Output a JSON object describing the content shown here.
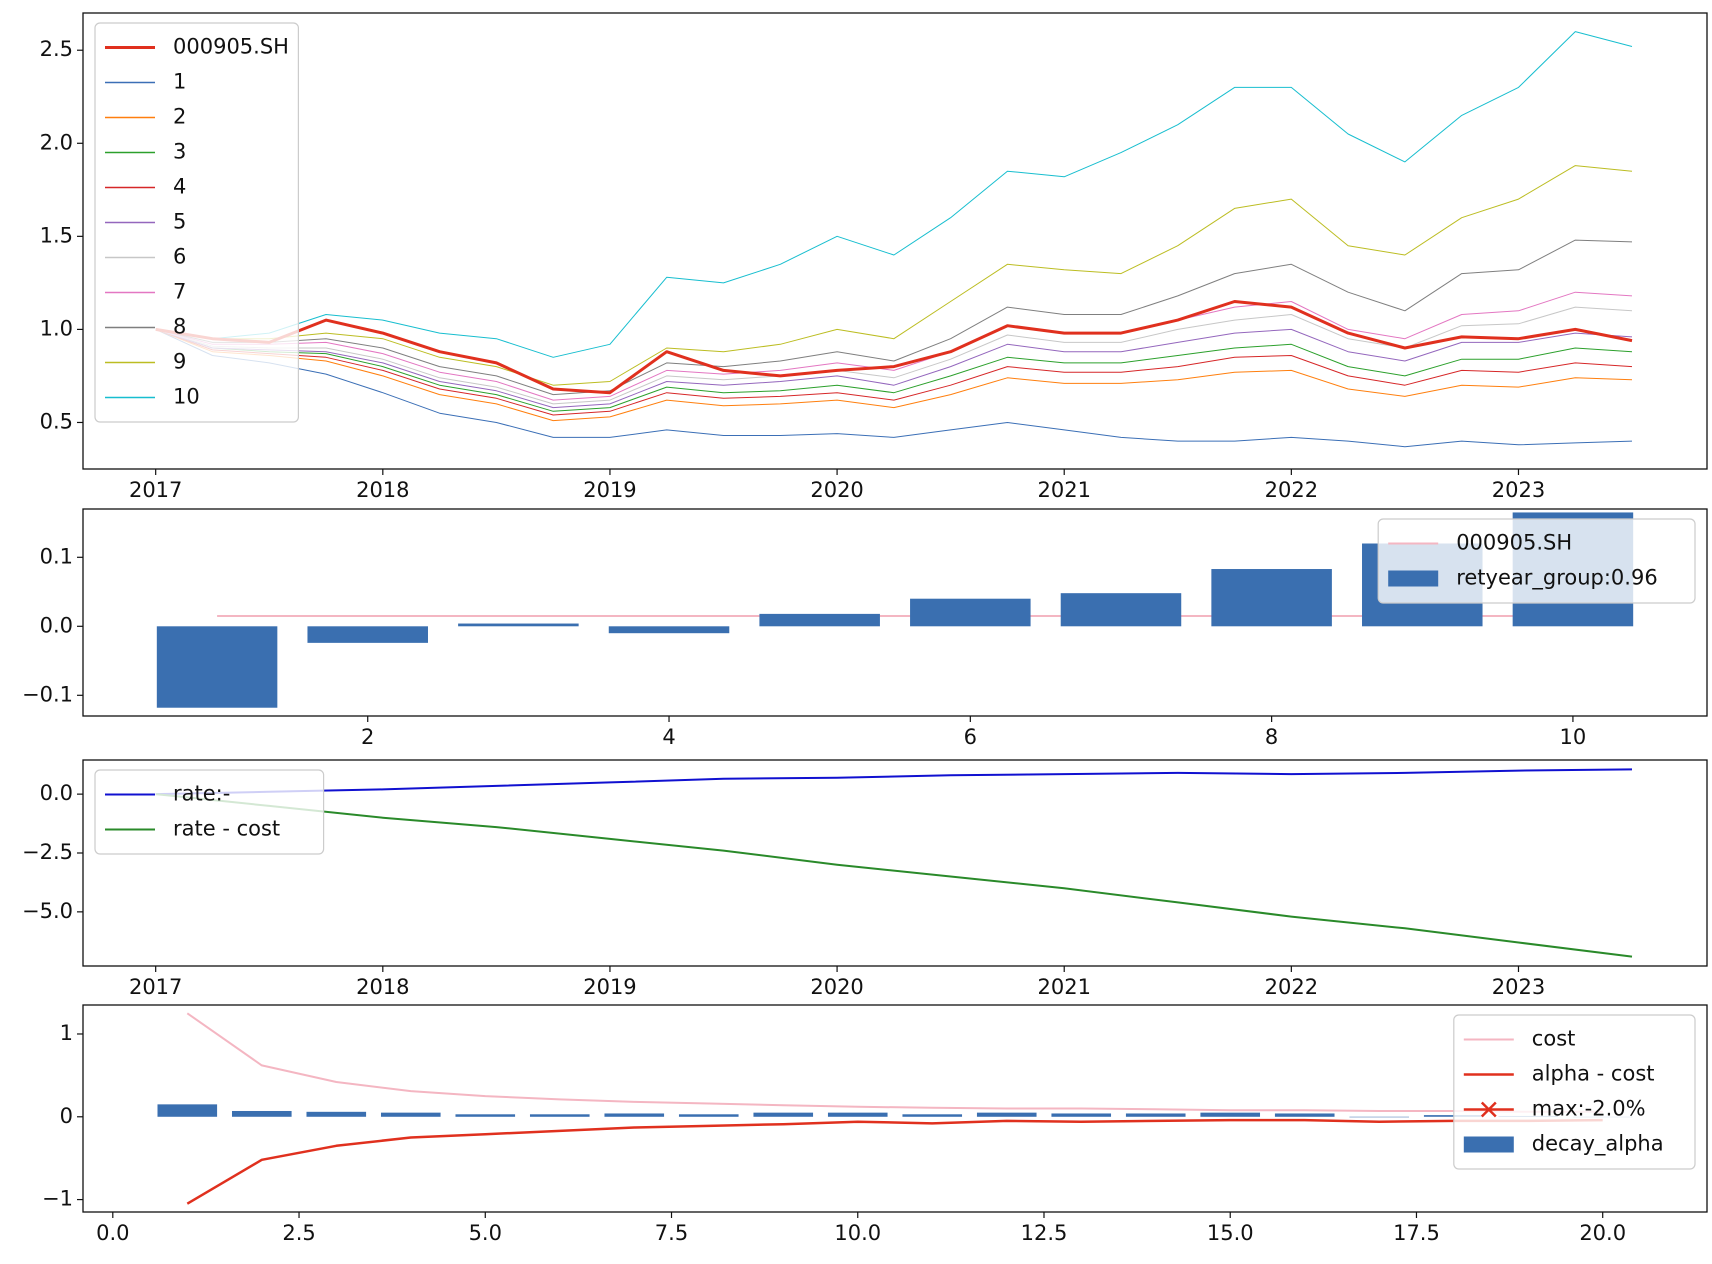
{
  "chart_data": [
    {
      "type": "line",
      "legend": "upper left",
      "x": [
        2017,
        2017.25,
        2017.5,
        2017.75,
        2018,
        2018.25,
        2018.5,
        2018.75,
        2019,
        2019.25,
        2019.5,
        2019.75,
        2020,
        2020.25,
        2020.5,
        2020.75,
        2021,
        2021.25,
        2021.5,
        2021.75,
        2022,
        2022.25,
        2022.5,
        2022.75,
        2023,
        2023.25,
        2023.5
      ],
      "xlim": [
        2016.68,
        2023.83
      ],
      "xticks": [
        2017,
        2018,
        2019,
        2020,
        2021,
        2022,
        2023
      ],
      "ylim": [
        0.25,
        2.7
      ],
      "yticks": [
        0.5,
        {
          "value": 1,
          "label": "1.0"
        },
        1.5,
        {
          "value": 2,
          "label": "2.0"
        },
        2.5
      ],
      "series": [
        {
          "name": "000905.SH",
          "color": "#e0301e",
          "linewidth": 3,
          "values": [
            1.0,
            0.95,
            0.93,
            1.05,
            0.98,
            0.88,
            0.82,
            0.68,
            0.66,
            0.88,
            0.78,
            0.75,
            0.78,
            0.8,
            0.88,
            1.02,
            0.98,
            0.98,
            1.05,
            1.15,
            1.12,
            0.98,
            0.9,
            0.96,
            0.95,
            1.0,
            0.94
          ]
        },
        {
          "name": "1",
          "color": "#3b6fb6",
          "linewidth": 1,
          "values": [
            1.0,
            0.86,
            0.82,
            0.76,
            0.66,
            0.55,
            0.5,
            0.42,
            0.42,
            0.46,
            0.43,
            0.43,
            0.44,
            0.42,
            0.46,
            0.5,
            0.46,
            0.42,
            0.4,
            0.4,
            0.42,
            0.4,
            0.37,
            0.4,
            0.38,
            0.39,
            0.4
          ]
        },
        {
          "name": "2",
          "color": "#ff7f0e",
          "linewidth": 1,
          "values": [
            1.0,
            0.88,
            0.86,
            0.83,
            0.75,
            0.65,
            0.6,
            0.51,
            0.53,
            0.62,
            0.59,
            0.6,
            0.62,
            0.58,
            0.65,
            0.74,
            0.71,
            0.71,
            0.73,
            0.77,
            0.78,
            0.68,
            0.64,
            0.7,
            0.69,
            0.74,
            0.73
          ]
        },
        {
          "name": "3",
          "color": "#2ca02c",
          "linewidth": 1,
          "values": [
            1.0,
            0.9,
            0.88,
            0.87,
            0.8,
            0.7,
            0.65,
            0.56,
            0.58,
            0.69,
            0.66,
            0.67,
            0.7,
            0.66,
            0.75,
            0.85,
            0.82,
            0.82,
            0.86,
            0.9,
            0.92,
            0.8,
            0.75,
            0.84,
            0.84,
            0.9,
            0.88
          ]
        },
        {
          "name": "4",
          "color": "#d62728",
          "linewidth": 1,
          "values": [
            1.0,
            0.89,
            0.87,
            0.85,
            0.78,
            0.68,
            0.63,
            0.54,
            0.56,
            0.66,
            0.63,
            0.64,
            0.66,
            0.62,
            0.7,
            0.8,
            0.77,
            0.77,
            0.8,
            0.85,
            0.86,
            0.75,
            0.7,
            0.78,
            0.77,
            0.82,
            0.8
          ]
        },
        {
          "name": "5",
          "color": "#9467bd",
          "linewidth": 1,
          "values": [
            1.0,
            0.9,
            0.89,
            0.88,
            0.82,
            0.72,
            0.67,
            0.58,
            0.6,
            0.72,
            0.7,
            0.72,
            0.75,
            0.7,
            0.8,
            0.92,
            0.88,
            0.88,
            0.93,
            0.98,
            1.0,
            0.88,
            0.83,
            0.93,
            0.93,
            0.98,
            0.96
          ]
        },
        {
          "name": "6",
          "color": "#c7c7c7",
          "linewidth": 1,
          "values": [
            1.0,
            0.91,
            0.9,
            0.9,
            0.84,
            0.74,
            0.69,
            0.6,
            0.62,
            0.75,
            0.73,
            0.75,
            0.78,
            0.74,
            0.84,
            0.97,
            0.93,
            0.93,
            1.0,
            1.05,
            1.08,
            0.95,
            0.9,
            1.02,
            1.03,
            1.12,
            1.1
          ]
        },
        {
          "name": "7",
          "color": "#e377c2",
          "linewidth": 1,
          "values": [
            1.0,
            0.92,
            0.92,
            0.93,
            0.87,
            0.77,
            0.72,
            0.62,
            0.64,
            0.78,
            0.76,
            0.78,
            0.82,
            0.78,
            0.88,
            1.02,
            0.98,
            0.98,
            1.05,
            1.12,
            1.15,
            1.0,
            0.95,
            1.08,
            1.1,
            1.2,
            1.18
          ]
        },
        {
          "name": "8",
          "color": "#7f7f7f",
          "linewidth": 1,
          "values": [
            1.0,
            0.93,
            0.93,
            0.95,
            0.9,
            0.8,
            0.75,
            0.65,
            0.67,
            0.82,
            0.8,
            0.83,
            0.88,
            0.83,
            0.95,
            1.12,
            1.08,
            1.08,
            1.18,
            1.3,
            1.35,
            1.2,
            1.1,
            1.3,
            1.32,
            1.48,
            1.47
          ]
        },
        {
          "name": "9",
          "color": "#bcbd22",
          "linewidth": 1,
          "values": [
            1.0,
            0.95,
            0.95,
            0.98,
            0.95,
            0.85,
            0.8,
            0.7,
            0.72,
            0.9,
            0.88,
            0.92,
            1.0,
            0.95,
            1.15,
            1.35,
            1.32,
            1.3,
            1.45,
            1.65,
            1.7,
            1.45,
            1.4,
            1.6,
            1.7,
            1.88,
            1.85
          ]
        },
        {
          "name": "10",
          "color": "#17becf",
          "linewidth": 1,
          "values": [
            1.0,
            0.95,
            0.98,
            1.08,
            1.05,
            0.98,
            0.95,
            0.85,
            0.92,
            1.28,
            1.25,
            1.35,
            1.5,
            1.4,
            1.6,
            1.85,
            1.82,
            1.95,
            2.1,
            2.3,
            2.3,
            2.05,
            1.9,
            2.15,
            2.3,
            2.6,
            2.52
          ]
        }
      ]
    },
    {
      "type": "bar",
      "legend": "upper right",
      "x": [
        1,
        2,
        3,
        4,
        5,
        6,
        7,
        8,
        9,
        10
      ],
      "xlim": [
        0.11,
        10.89
      ],
      "xticks": [
        2,
        4,
        6,
        8,
        10
      ],
      "ylim": [
        -0.13,
        0.17
      ],
      "yticks": [
        {
          "value": -0.1,
          "label": "−0.1"
        },
        {
          "value": 0,
          "label": "0.0"
        },
        0.1
      ],
      "series": [
        {
          "name": "000905.SH",
          "kind": "line",
          "color": "#f4b6c2",
          "linewidth": 2,
          "values": [
            0.015,
            0.015,
            0.015,
            0.015,
            0.015,
            0.015,
            0.015,
            0.015,
            0.015,
            0.015
          ]
        },
        {
          "name": "retyear_group:0.96",
          "kind": "bar",
          "color": "#3a6fb0",
          "values": [
            -0.118,
            -0.024,
            0.004,
            -0.01,
            0.018,
            0.04,
            0.048,
            0.083,
            0.12,
            0.165
          ]
        }
      ]
    },
    {
      "type": "line",
      "legend": "upper left",
      "x": [
        2017,
        2017.5,
        2018,
        2018.5,
        2019,
        2019.5,
        2020,
        2020.5,
        2021,
        2021.5,
        2022,
        2022.5,
        2023,
        2023.5
      ],
      "xlim": [
        2016.68,
        2023.83
      ],
      "xticks": [
        2017,
        2018,
        2019,
        2020,
        2021,
        2022,
        2023
      ],
      "ylim": [
        -7.3,
        1.45
      ],
      "yticks": [
        {
          "value": 0,
          "label": "0.0"
        },
        {
          "value": -2.5,
          "label": "−2.5"
        },
        {
          "value": -5,
          "label": "−5.0"
        }
      ],
      "series": [
        {
          "name": "rate:-",
          "color": "#1010d0",
          "linewidth": 2,
          "values": [
            0,
            0.1,
            0.2,
            0.35,
            0.5,
            0.65,
            0.7,
            0.8,
            0.85,
            0.9,
            0.85,
            0.9,
            1.0,
            1.05
          ]
        },
        {
          "name": "rate - cost",
          "color": "#2a8a2a",
          "linewidth": 2,
          "values": [
            0,
            -0.5,
            -1.0,
            -1.4,
            -1.9,
            -2.4,
            -3.0,
            -3.5,
            -4.0,
            -4.6,
            -5.2,
            -5.7,
            -6.3,
            -6.9
          ]
        }
      ]
    },
    {
      "type": "bar",
      "legend": "upper right",
      "x": [
        1,
        2,
        3,
        4,
        5,
        6,
        7,
        8,
        9,
        10,
        11,
        12,
        13,
        14,
        15,
        16,
        17,
        18,
        19,
        20
      ],
      "xlim": [
        -0.4,
        21.4
      ],
      "xticks": [
        {
          "value": 0,
          "label": "0.0"
        },
        2.5,
        {
          "value": 5,
          "label": "5.0"
        },
        7.5,
        {
          "value": 10,
          "label": "10.0"
        },
        12.5,
        {
          "value": 15,
          "label": "15.0"
        },
        17.5,
        {
          "value": 20,
          "label": "20.0"
        }
      ],
      "ylim": [
        -1.15,
        1.35
      ],
      "yticks": [
        {
          "value": -1,
          "label": "−1"
        },
        0,
        1
      ],
      "series": [
        {
          "name": "cost",
          "kind": "line",
          "color": "#f4b6c2",
          "linewidth": 2,
          "values": [
            1.25,
            0.62,
            0.42,
            0.31,
            0.25,
            0.21,
            0.18,
            0.16,
            0.14,
            0.12,
            0.11,
            0.1,
            0.1,
            0.09,
            0.08,
            0.08,
            0.07,
            0.07,
            0.06,
            0.06
          ]
        },
        {
          "name": "alpha - cost",
          "kind": "line",
          "color": "#e0301e",
          "linewidth": 2.5,
          "values": [
            -1.05,
            -0.52,
            -0.35,
            -0.25,
            -0.21,
            -0.17,
            -0.13,
            -0.11,
            -0.09,
            -0.06,
            -0.08,
            -0.05,
            -0.06,
            -0.05,
            -0.04,
            -0.04,
            -0.06,
            -0.05,
            -0.05,
            -0.04
          ]
        },
        {
          "name": "max:-2.0%",
          "kind": "line",
          "marker": "x",
          "color": "#e0301e",
          "linewidth": 2.5,
          "x": [],
          "values": []
        },
        {
          "name": "decay_alpha",
          "kind": "bar",
          "color": "#3a6fb0",
          "values": [
            0.15,
            0.07,
            0.06,
            0.05,
            0.03,
            0.03,
            0.04,
            0.03,
            0.05,
            0.05,
            0.03,
            0.05,
            0.04,
            0.04,
            0.05,
            0.04,
            0.0,
            0.02,
            0.01,
            0.0
          ]
        }
      ]
    }
  ]
}
